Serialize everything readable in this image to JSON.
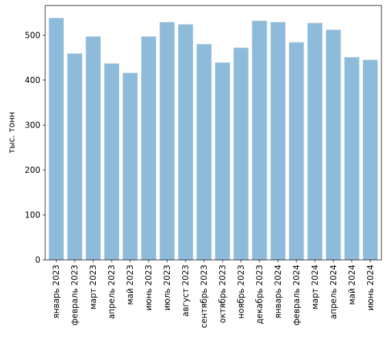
{
  "chart_data": {
    "type": "bar",
    "title": "",
    "xlabel": "",
    "ylabel": "тыс. тонн",
    "ylim": [
      0,
      566
    ],
    "yticks": [
      0,
      100,
      200,
      300,
      400,
      500
    ],
    "grid": false,
    "bar_color": "#8fbbda",
    "categories": [
      "январь 2023",
      "февраль 2023",
      "март 2023",
      "апрель 2023",
      "май 2023",
      "июнь 2023",
      "июль 2023",
      "август 2023",
      "сентябрь 2023",
      "октябрь 2023",
      "ноябрь 2023",
      "декабрь 2023",
      "январь 2024",
      "февраль 2024",
      "март 2024",
      "апрель 2024",
      "май 2024",
      "июнь 2024"
    ],
    "values": [
      538,
      459,
      497,
      437,
      416,
      497,
      529,
      524,
      480,
      439,
      472,
      532,
      529,
      484,
      527,
      512,
      451,
      445
    ]
  }
}
